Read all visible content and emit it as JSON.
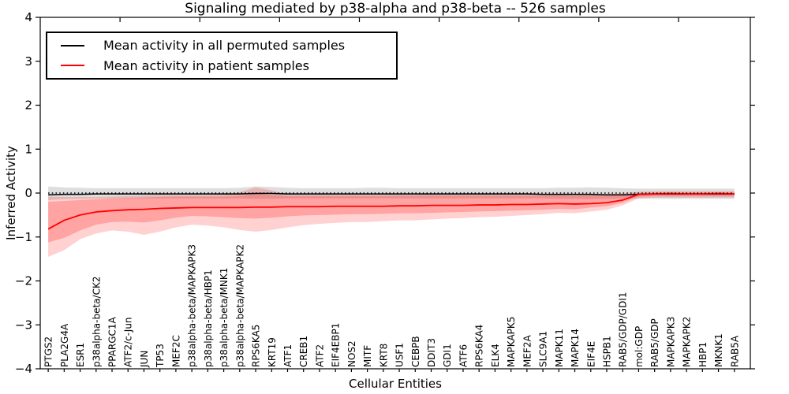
{
  "chart_data": {
    "type": "line",
    "title": "Signaling mediated by p38-alpha and p38-beta -- 526 samples",
    "xlabel": "Cellular Entities",
    "ylabel": "Inferred Activity",
    "ylim": [
      -4,
      4
    ],
    "y_ticks": [
      4,
      3,
      2,
      1,
      0,
      -1,
      -2,
      -3,
      -4
    ],
    "x_numeric_top_ticks_every": 5,
    "grid": false,
    "legend_position": "upper left",
    "zero_reference_line": {
      "y": 0,
      "style": "dotted",
      "color": "#000000"
    },
    "categories": [
      "PTGS2",
      "PLA2G4A",
      "ESR1",
      "p38alpha-beta/CK2",
      "PPARGC1A",
      "ATF2/c-Jun",
      "JUN",
      "TP53",
      "MEF2C",
      "p38alpha-beta/MAPKAPK3",
      "p38alpha-beta/HBP1",
      "p38alpha-beta/MNK1",
      "p38alpha-beta/MAPKAPK2",
      "RPS6KA5",
      "KRT19",
      "ATF1",
      "CREB1",
      "ATF2",
      "EIF4EBP1",
      "NOS2",
      "MITF",
      "KRT8",
      "USF1",
      "CEBPB",
      "DDIT3",
      "GDI1",
      "ATF6",
      "RPS6KA4",
      "ELK4",
      "MAPKAPK5",
      "MEF2A",
      "SLC9A1",
      "MAPK11",
      "MAPK14",
      "EIF4E",
      "HSPB1",
      "RAB5/GDP/GDI1",
      "mol:GDP",
      "RAB5/GDP",
      "MAPKAPK3",
      "MAPKAPK2",
      "HBP1",
      "MKNK1",
      "RAB5A"
    ],
    "series": [
      {
        "name": "Mean activity in all permuted samples",
        "color": "#000000",
        "values": [
          -0.04,
          -0.03,
          -0.03,
          -0.02,
          -0.02,
          -0.02,
          -0.02,
          -0.02,
          -0.02,
          -0.02,
          -0.02,
          -0.02,
          -0.02,
          -0.01,
          -0.01,
          -0.02,
          -0.02,
          -0.02,
          -0.02,
          -0.02,
          -0.02,
          -0.02,
          -0.02,
          -0.02,
          -0.02,
          -0.02,
          -0.02,
          -0.02,
          -0.02,
          -0.02,
          -0.02,
          -0.03,
          -0.03,
          -0.03,
          -0.03,
          -0.04,
          -0.04,
          -0.03,
          -0.02,
          -0.02,
          -0.02,
          -0.02,
          -0.02,
          -0.02
        ]
      },
      {
        "name": "Mean activity in patient samples",
        "color": "#ff0000",
        "values": [
          -0.82,
          -0.62,
          -0.5,
          -0.43,
          -0.4,
          -0.38,
          -0.37,
          -0.35,
          -0.34,
          -0.33,
          -0.33,
          -0.33,
          -0.33,
          -0.32,
          -0.32,
          -0.31,
          -0.31,
          -0.31,
          -0.3,
          -0.3,
          -0.3,
          -0.3,
          -0.29,
          -0.29,
          -0.28,
          -0.28,
          -0.28,
          -0.27,
          -0.27,
          -0.26,
          -0.26,
          -0.25,
          -0.24,
          -0.25,
          -0.24,
          -0.22,
          -0.16,
          -0.03,
          -0.02,
          -0.01,
          -0.02,
          -0.02,
          -0.01,
          -0.02
        ]
      }
    ],
    "bands": [
      {
        "name": "permuted-samples-band",
        "color": "#000000",
        "opacity": 0.13,
        "hi": [
          0.15,
          0.13,
          0.12,
          0.11,
          0.11,
          0.11,
          0.11,
          0.11,
          0.11,
          0.11,
          0.11,
          0.11,
          0.12,
          0.15,
          0.14,
          0.12,
          0.11,
          0.11,
          0.11,
          0.11,
          0.12,
          0.12,
          0.11,
          0.11,
          0.11,
          0.11,
          0.11,
          0.11,
          0.11,
          0.11,
          0.11,
          0.11,
          0.12,
          0.12,
          0.13,
          0.12,
          0.11,
          0.1,
          0.1,
          0.1,
          0.1,
          0.1,
          0.1,
          0.1
        ],
        "lo": [
          -0.16,
          -0.14,
          -0.13,
          -0.12,
          -0.12,
          -0.12,
          -0.12,
          -0.12,
          -0.12,
          -0.12,
          -0.12,
          -0.12,
          -0.12,
          -0.13,
          -0.13,
          -0.12,
          -0.12,
          -0.12,
          -0.12,
          -0.12,
          -0.12,
          -0.12,
          -0.12,
          -0.12,
          -0.12,
          -0.12,
          -0.12,
          -0.12,
          -0.12,
          -0.12,
          -0.12,
          -0.12,
          -0.13,
          -0.13,
          -0.14,
          -0.13,
          -0.12,
          -0.13,
          -0.13,
          -0.13,
          -0.13,
          -0.13,
          -0.13,
          -0.13
        ]
      },
      {
        "name": "patient-samples-outer-band",
        "color": "#ff0000",
        "opacity": 0.18,
        "hi": [
          -0.08,
          -0.09,
          -0.09,
          -0.09,
          -0.08,
          -0.07,
          -0.06,
          -0.05,
          -0.05,
          -0.05,
          -0.05,
          -0.04,
          0.02,
          0.13,
          0.06,
          -0.04,
          -0.04,
          -0.04,
          -0.04,
          -0.04,
          -0.04,
          -0.04,
          -0.04,
          -0.04,
          -0.03,
          -0.03,
          -0.03,
          -0.03,
          -0.03,
          -0.03,
          -0.03,
          -0.03,
          -0.03,
          -0.03,
          -0.03,
          -0.02,
          -0.01,
          0.03,
          0.04,
          0.04,
          0.04,
          0.04,
          0.04,
          0.04
        ],
        "lo": [
          -1.45,
          -1.3,
          -1.05,
          -0.92,
          -0.85,
          -0.88,
          -0.95,
          -0.88,
          -0.78,
          -0.72,
          -0.74,
          -0.78,
          -0.84,
          -0.88,
          -0.84,
          -0.78,
          -0.73,
          -0.7,
          -0.68,
          -0.66,
          -0.66,
          -0.64,
          -0.62,
          -0.62,
          -0.6,
          -0.58,
          -0.57,
          -0.55,
          -0.54,
          -0.52,
          -0.5,
          -0.48,
          -0.45,
          -0.46,
          -0.42,
          -0.38,
          -0.28,
          -0.12,
          -0.1,
          -0.1,
          -0.1,
          -0.1,
          -0.1,
          -0.1
        ]
      },
      {
        "name": "patient-samples-inner-band",
        "color": "#ff0000",
        "opacity": 0.22,
        "hi": [
          -0.2,
          -0.18,
          -0.16,
          -0.14,
          -0.12,
          -0.11,
          -0.1,
          -0.09,
          -0.08,
          -0.08,
          -0.08,
          -0.08,
          -0.07,
          -0.02,
          -0.05,
          -0.07,
          -0.07,
          -0.07,
          -0.07,
          -0.07,
          -0.07,
          -0.07,
          -0.06,
          -0.06,
          -0.06,
          -0.06,
          -0.06,
          -0.06,
          -0.06,
          -0.06,
          -0.06,
          -0.06,
          -0.05,
          -0.06,
          -0.05,
          -0.05,
          -0.04,
          0.0,
          0.01,
          0.01,
          0.01,
          0.01,
          0.01,
          0.01
        ],
        "lo": [
          -1.12,
          -1.02,
          -0.85,
          -0.72,
          -0.66,
          -0.65,
          -0.67,
          -0.62,
          -0.56,
          -0.52,
          -0.53,
          -0.55,
          -0.57,
          -0.58,
          -0.56,
          -0.53,
          -0.51,
          -0.5,
          -0.49,
          -0.48,
          -0.48,
          -0.47,
          -0.46,
          -0.46,
          -0.45,
          -0.44,
          -0.43,
          -0.42,
          -0.41,
          -0.4,
          -0.39,
          -0.38,
          -0.36,
          -0.37,
          -0.33,
          -0.3,
          -0.22,
          -0.08,
          -0.07,
          -0.07,
          -0.07,
          -0.07,
          -0.07,
          -0.07
        ]
      }
    ]
  }
}
